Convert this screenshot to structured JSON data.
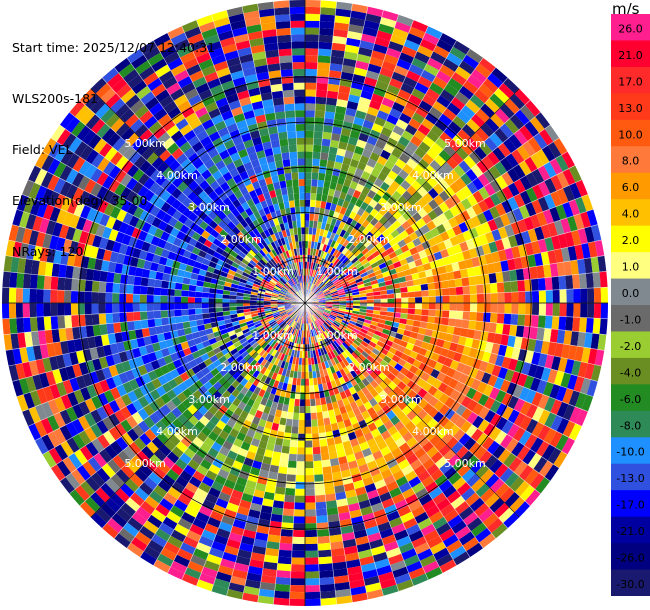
{
  "header": {
    "start_time": "Start time: 2025/12/07 12:40:31",
    "instrument": "WLS200s-181",
    "field": "Field: VEL",
    "elevation": "Elevation(deg): 35.00",
    "nrays": "NRays: 120"
  },
  "colorbar": {
    "unit": "m/s",
    "levels": [
      {
        "label": "26.0",
        "color": "#ff1f8f"
      },
      {
        "label": "21.0",
        "color": "#ff0030"
      },
      {
        "label": "17.0",
        "color": "#ff2a2a"
      },
      {
        "label": "13.0",
        "color": "#ff3a1a"
      },
      {
        "label": "10.0",
        "color": "#ff5a10"
      },
      {
        "label": "8.0",
        "color": "#ff7a3a"
      },
      {
        "label": "6.0",
        "color": "#ff9a00"
      },
      {
        "label": "4.0",
        "color": "#ffc000"
      },
      {
        "label": "2.0",
        "color": "#ffff00"
      },
      {
        "label": "1.0",
        "color": "#ffff80"
      },
      {
        "label": "0.0",
        "color": "#808890"
      },
      {
        "label": "-1.0",
        "color": "#6a6a6a"
      },
      {
        "label": "-2.0",
        "color": "#9acd32"
      },
      {
        "label": "-4.0",
        "color": "#6b8e23"
      },
      {
        "label": "-6.0",
        "color": "#228b22"
      },
      {
        "label": "-8.0",
        "color": "#2e8b57"
      },
      {
        "label": "-10.0",
        "color": "#1e90ff"
      },
      {
        "label": "-13.0",
        "color": "#3050e0"
      },
      {
        "label": "-17.0",
        "color": "#0000ff"
      },
      {
        "label": "-21.0",
        "color": "#0000a0"
      },
      {
        "label": "-26.0",
        "color": "#000080"
      },
      {
        "label": "-30.0",
        "color": "#191970"
      }
    ]
  },
  "chart_data": {
    "type": "heatmap",
    "projection": "polar-ppi",
    "nrays": 120,
    "range_ring_labels": [
      "1.00km",
      "2.00km",
      "3.00km",
      "4.00km",
      "5.00km"
    ],
    "range_rings_km": [
      1,
      2,
      3,
      4,
      5
    ],
    "max_range_km": 6.7,
    "grid": true,
    "legend": "right colorbar",
    "velocity_pattern": {
      "positive_region": "east and south-east (yellow to red)",
      "negative_region": "north-west and south-west (blue and green)",
      "noise": "outer ranges beyond about 4.5 km are noisy"
    }
  }
}
